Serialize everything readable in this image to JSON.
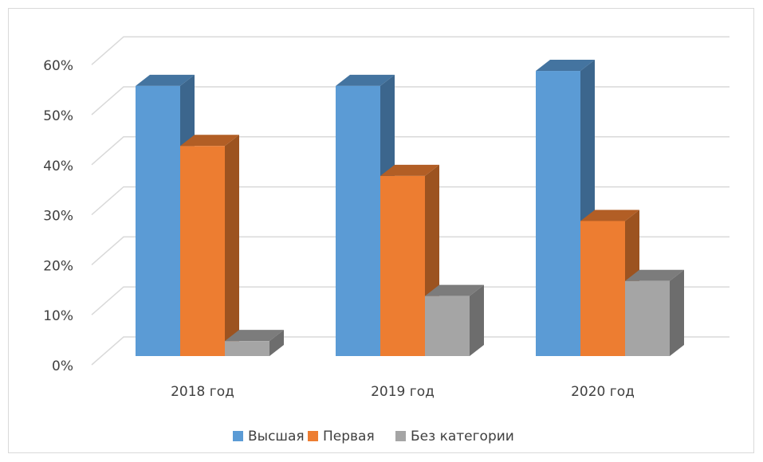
{
  "chart_data": {
    "type": "bar3d",
    "categories": [
      "2018 год",
      "2019 год",
      "2020 год"
    ],
    "series": [
      {
        "name": "Высшая",
        "color": "#5b9bd5",
        "values": [
          54,
          54,
          57
        ]
      },
      {
        "name": "Первая",
        "color": "#ed7d31",
        "values": [
          42,
          36,
          27
        ]
      },
      {
        "name": "Без категории",
        "color": "#a5a5a5",
        "values": [
          3,
          12,
          15
        ]
      }
    ],
    "ylim": [
      0,
      60
    ],
    "yticks": [
      {
        "value": 0,
        "label": "0%"
      },
      {
        "value": 10,
        "label": "10%"
      },
      {
        "value": 20,
        "label": "20%"
      },
      {
        "value": 30,
        "label": "30%"
      },
      {
        "value": 40,
        "label": "40%"
      },
      {
        "value": 50,
        "label": "50%"
      },
      {
        "value": 60,
        "label": "60%"
      }
    ],
    "grid": true,
    "legend": "bottom"
  }
}
